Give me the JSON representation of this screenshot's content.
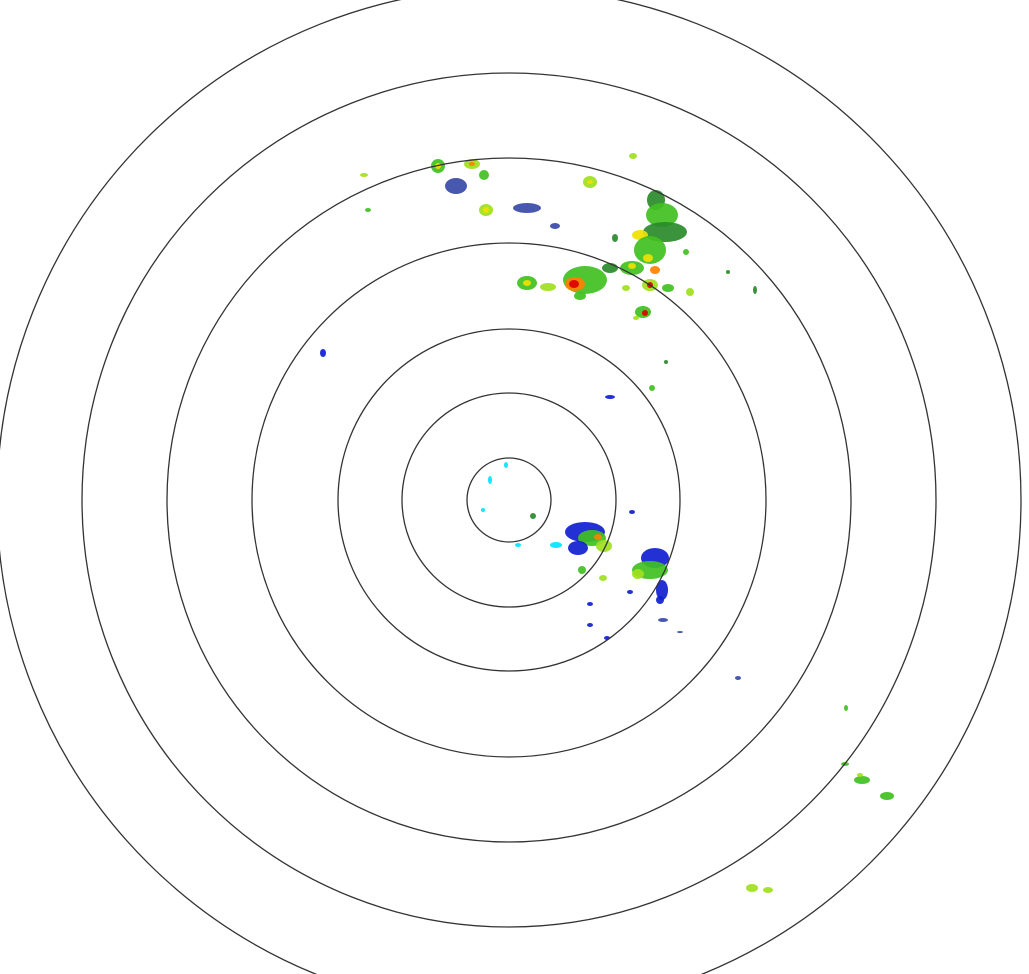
{
  "radar": {
    "range_ring_count": 7,
    "ring_color": "#333333",
    "background": "#ffffff",
    "reflectivity_palette": [
      "#00e5ff",
      "#1020d0",
      "#3a4aa8",
      "#2a8a2a",
      "#40c020",
      "#a0e020",
      "#f0e000",
      "#ff8000",
      "#e00000"
    ]
  }
}
